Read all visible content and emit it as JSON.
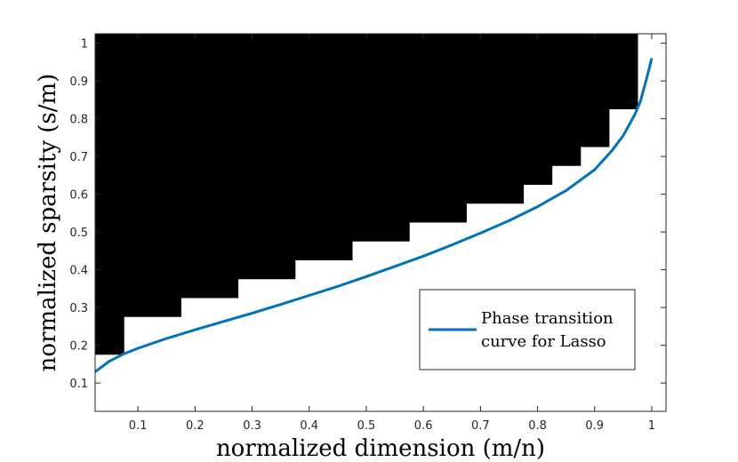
{
  "chart_data": {
    "type": "heatmap",
    "xlabel": "normalized dimension (m/n)",
    "ylabel": "normalized sparsity (s/m)",
    "xlim": [
      0.025,
      1.025
    ],
    "ylim": [
      0.025,
      1.025
    ],
    "x_ticks": [
      "0.1",
      "0.2",
      "0.3",
      "0.4",
      "0.5",
      "0.6",
      "0.7",
      "0.8",
      "0.9",
      "1"
    ],
    "y_ticks": [
      "0.1",
      "0.2",
      "0.3",
      "0.4",
      "0.5",
      "0.6",
      "0.7",
      "0.8",
      "0.9",
      "1"
    ],
    "grid": false,
    "legend_position": "bottom-right",
    "colors": {
      "failure": "#000000",
      "success": "#ffffff",
      "curve": "#0072BD"
    },
    "failure_region": [
      {
        "x_from": 0.025,
        "x_to": 0.075,
        "y_from": 0.175
      },
      {
        "x_from": 0.075,
        "x_to": 0.175,
        "y_from": 0.275
      },
      {
        "x_from": 0.175,
        "x_to": 0.275,
        "y_from": 0.325
      },
      {
        "x_from": 0.275,
        "x_to": 0.375,
        "y_from": 0.375
      },
      {
        "x_from": 0.375,
        "x_to": 0.475,
        "y_from": 0.425
      },
      {
        "x_from": 0.475,
        "x_to": 0.575,
        "y_from": 0.475
      },
      {
        "x_from": 0.575,
        "x_to": 0.675,
        "y_from": 0.525
      },
      {
        "x_from": 0.675,
        "x_to": 0.775,
        "y_from": 0.575
      },
      {
        "x_from": 0.775,
        "x_to": 0.825,
        "y_from": 0.625
      },
      {
        "x_from": 0.825,
        "x_to": 0.875,
        "y_from": 0.675
      },
      {
        "x_from": 0.875,
        "x_to": 0.925,
        "y_from": 0.725
      },
      {
        "x_from": 0.925,
        "x_to": 0.975,
        "y_from": 0.825
      }
    ],
    "series": [
      {
        "name": "Phase transition curve for Lasso",
        "x": [
          0.025,
          0.05,
          0.075,
          0.1,
          0.15,
          0.2,
          0.25,
          0.3,
          0.35,
          0.4,
          0.45,
          0.5,
          0.55,
          0.6,
          0.65,
          0.7,
          0.75,
          0.8,
          0.85,
          0.9,
          0.93,
          0.95,
          0.97,
          0.98,
          0.99,
          1.0
        ],
        "y": [
          0.13,
          0.158,
          0.177,
          0.192,
          0.218,
          0.241,
          0.263,
          0.285,
          0.308,
          0.332,
          0.356,
          0.382,
          0.409,
          0.436,
          0.466,
          0.497,
          0.53,
          0.567,
          0.61,
          0.665,
          0.715,
          0.755,
          0.81,
          0.845,
          0.9,
          0.96
        ]
      }
    ]
  }
}
